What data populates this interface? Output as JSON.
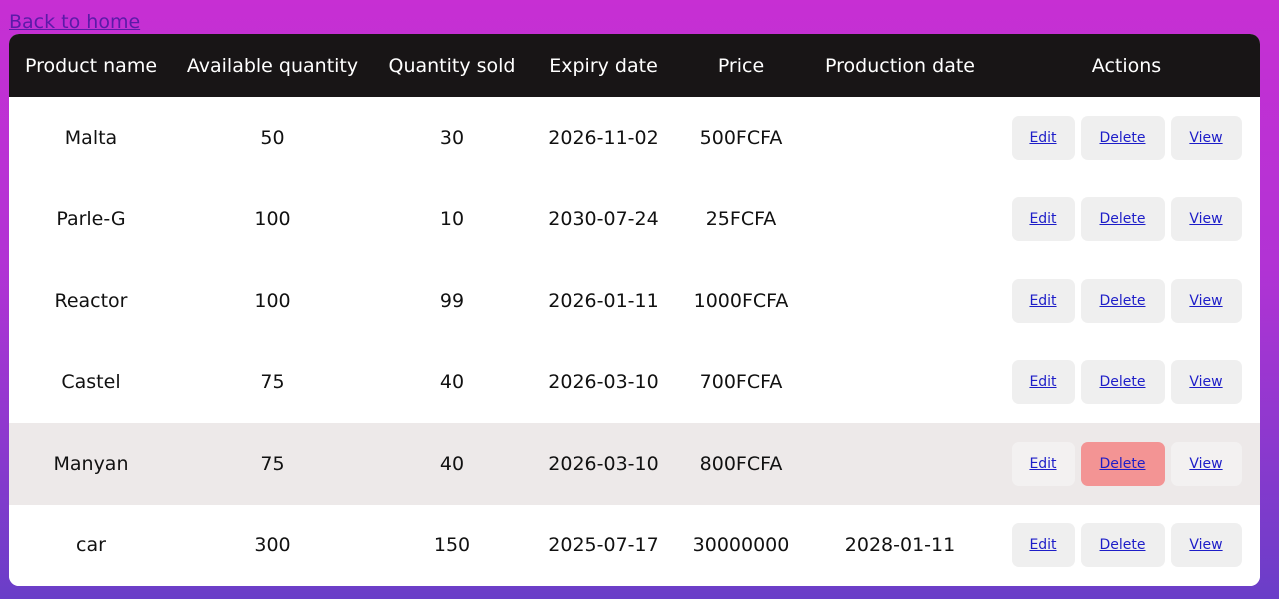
{
  "back_link": "Back to home",
  "columns": [
    "Product name",
    "Available quantity",
    "Quantity sold",
    "Expiry date",
    "Price",
    "Production date",
    "Actions"
  ],
  "action_labels": {
    "edit": "Edit",
    "delete": "Delete",
    "view": "View"
  },
  "rows": [
    {
      "name": "Malta",
      "available": "50",
      "sold": "30",
      "expiry": "2026-11-02",
      "price": "500FCFA",
      "production": ""
    },
    {
      "name": "Parle-G",
      "available": "100",
      "sold": "10",
      "expiry": "2030-07-24",
      "price": "25FCFA",
      "production": ""
    },
    {
      "name": "Reactor",
      "available": "100",
      "sold": "99",
      "expiry": "2026-01-11",
      "price": "1000FCFA",
      "production": ""
    },
    {
      "name": "Castel",
      "available": "75",
      "sold": "40",
      "expiry": "2026-03-10",
      "price": "700FCFA",
      "production": ""
    },
    {
      "name": "Manyan",
      "available": "75",
      "sold": "40",
      "expiry": "2026-03-10",
      "price": "800FCFA",
      "production": ""
    },
    {
      "name": "car",
      "available": "300",
      "sold": "150",
      "expiry": "2025-07-17",
      "price": "30000000",
      "production": "2028-01-11"
    }
  ],
  "colors": {
    "header_bg": "#181516",
    "hover_row_bg": "#ede9e9",
    "delete_hover_bg": "#f39494",
    "link": "#1d1dc8"
  }
}
